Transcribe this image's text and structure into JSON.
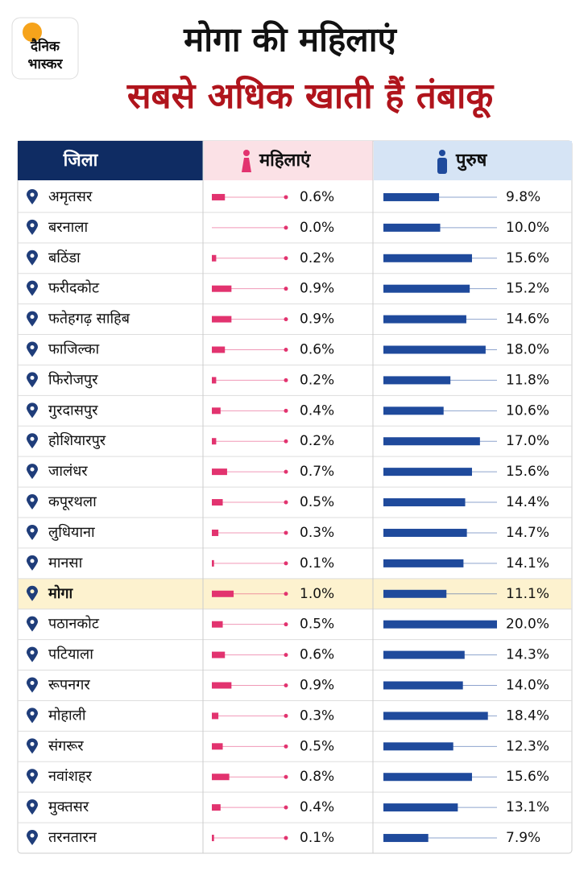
{
  "logo": [
    "दैनिक",
    "भास्कर"
  ],
  "chart_data": {
    "type": "bar",
    "title": "मोगा की महिलाएं",
    "subtitle": "सबसे अधिक खाती हैं तंबाकू",
    "category_header": "जिला",
    "categories": [
      "अमृतसर",
      "बरनाला",
      "बठिंडा",
      "फरीदकोट",
      "फतेहगढ़ साहिब",
      "फाजिल्का",
      "फिरोजपुर",
      "गुरदासपुर",
      "होशियारपुर",
      "जालंधर",
      "कपूरथला",
      "लुधियाना",
      "मानसा",
      "मोगा",
      "पठानकोट",
      "पटियाला",
      "रूपनगर",
      "मोहाली",
      "संगरूर",
      "नवांशहर",
      "मुक्तसर",
      "तरनतारन"
    ],
    "highlight": 13,
    "series": [
      {
        "name": "महिलाएं",
        "color": "#e2336f",
        "xlim": [
          0,
          3.4
        ],
        "values": [
          0.6,
          0.0,
          0.2,
          0.9,
          0.9,
          0.6,
          0.2,
          0.4,
          0.2,
          0.7,
          0.5,
          0.3,
          0.1,
          1.0,
          0.5,
          0.6,
          0.9,
          0.3,
          0.5,
          0.8,
          0.4,
          0.1
        ],
        "value_labels": [
          "0.6%",
          "0.0%",
          "0.2%",
          "0.9%",
          "0.9%",
          "0.6%",
          "0.2%",
          "0.4%",
          "0.2%",
          "0.7%",
          "0.5%",
          "0.3%",
          "0.1%",
          "1.0%",
          "0.5%",
          "0.6%",
          "0.9%",
          "0.3%",
          "0.5%",
          "0.8%",
          "0.4%",
          "0.1%"
        ]
      },
      {
        "name": "पुरुष",
        "color": "#1f4a9c",
        "xlim": [
          0,
          20
        ],
        "values": [
          9.8,
          10.0,
          15.6,
          15.2,
          14.6,
          18.0,
          11.8,
          10.6,
          17.0,
          15.6,
          14.4,
          14.7,
          14.1,
          11.1,
          20.0,
          14.3,
          14.0,
          18.4,
          12.3,
          15.6,
          13.1,
          7.9
        ],
        "value_labels": [
          "9.8%",
          "10.0%",
          "15.6%",
          "15.2%",
          "14.6%",
          "18.0%",
          "11.8%",
          "10.6%",
          "17.0%",
          "15.6%",
          "14.4%",
          "14.7%",
          "14.1%",
          "11.1%",
          "20.0%",
          "14.3%",
          "14.0%",
          "18.4%",
          "12.3%",
          "15.6%",
          "13.1%",
          "7.9%"
        ]
      }
    ]
  }
}
